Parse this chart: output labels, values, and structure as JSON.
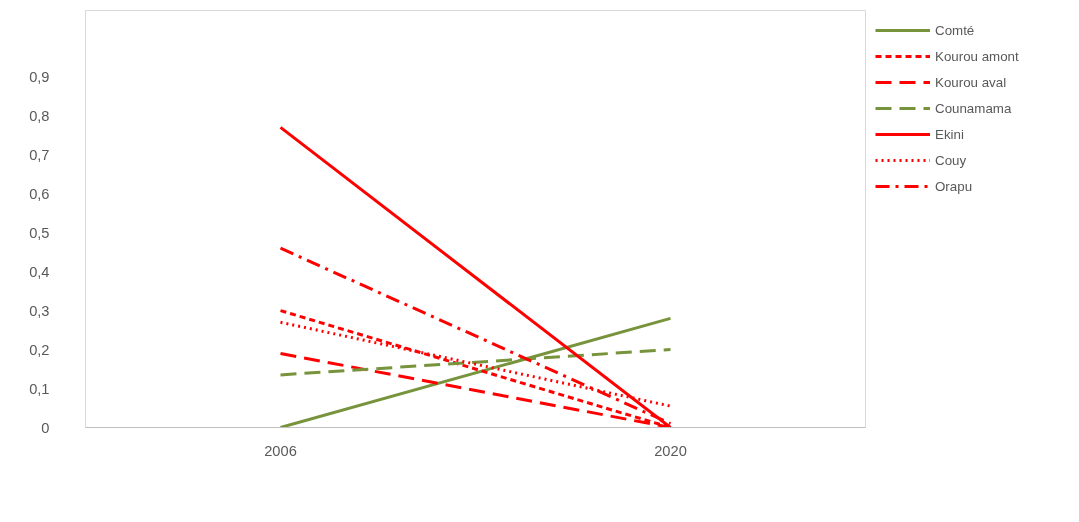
{
  "chart_data": {
    "type": "line",
    "categories": [
      "2006",
      "2020"
    ],
    "series": [
      {
        "name": "Comté",
        "color": "#77933c",
        "line_style": "solid",
        "values": [
          0,
          0.28
        ]
      },
      {
        "name": "Kourou amont",
        "color": "#ff0000",
        "line_style": "dashed",
        "values": [
          0.3,
          0.0
        ]
      },
      {
        "name": "Kourou aval",
        "color": "#ff0000",
        "line_style": "longdash",
        "values": [
          0.19,
          0.0
        ]
      },
      {
        "name": "Counamama",
        "color": "#77933c",
        "line_style": "longdash",
        "values": [
          0.135,
          0.2
        ]
      },
      {
        "name": "Ekini",
        "color": "#ff0000",
        "line_style": "solid",
        "values": [
          0.77,
          0.0
        ]
      },
      {
        "name": "Couy",
        "color": "#ff0000",
        "line_style": "dotted",
        "values": [
          0.27,
          0.055
        ]
      },
      {
        "name": "Orapu",
        "color": "#ff0000",
        "line_style": "dashdot",
        "values": [
          0.46,
          0.01
        ]
      }
    ],
    "ylim": [
      0,
      1.07
    ],
    "yticks": [
      {
        "value": 0,
        "label": "0"
      },
      {
        "value": 0.1,
        "label": "0,1"
      },
      {
        "value": 0.2,
        "label": "0,2"
      },
      {
        "value": 0.3,
        "label": "0,3"
      },
      {
        "value": 0.4,
        "label": "0,4"
      },
      {
        "value": 0.5,
        "label": "0,5"
      },
      {
        "value": 0.6,
        "label": "0,6"
      },
      {
        "value": 0.7,
        "label": "0,7"
      },
      {
        "value": 0.8,
        "label": "0,8"
      },
      {
        "value": 0.9,
        "label": "0,9"
      }
    ],
    "grid": false,
    "legend": "top right",
    "marker": "none"
  }
}
